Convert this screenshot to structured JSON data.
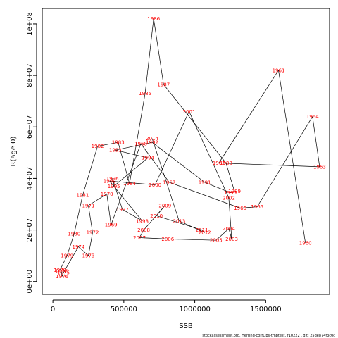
{
  "chart_data": {
    "type": "scatter",
    "xlabel": "SSB",
    "ylabel": "R(age 0)",
    "xlim": [
      -75000,
      1950000
    ],
    "ylim": [
      -5000000,
      106000000
    ],
    "x_ticks": [
      0,
      500000,
      1000000,
      1500000
    ],
    "x_tick_labels": [
      "0",
      "500000",
      "1000000",
      "1500000"
    ],
    "y_ticks": [
      0,
      20000000,
      40000000,
      60000000,
      80000000,
      100000000
    ],
    "y_tick_labels": [
      "0e+00",
      "2e+07",
      "4e+07",
      "6e+07",
      "8e+07",
      "1e+08"
    ],
    "points": [
      {
        "label": "1960",
        "x": 1780000,
        "y": 15000000
      },
      {
        "label": "1961",
        "x": 1590000,
        "y": 82000000
      },
      {
        "label": "1962",
        "x": 1170000,
        "y": 46000000
      },
      {
        "label": "1963",
        "x": 1880000,
        "y": 44500000
      },
      {
        "label": "1964",
        "x": 1830000,
        "y": 64000000
      },
      {
        "label": "1965",
        "x": 1440000,
        "y": 29000000
      },
      {
        "label": "1966",
        "x": 1320000,
        "y": 28500000
      },
      {
        "label": "1967",
        "x": 820000,
        "y": 38500000
      },
      {
        "label": "1968",
        "x": 620000,
        "y": 53500000
      },
      {
        "label": "1969",
        "x": 410000,
        "y": 22000000
      },
      {
        "label": "1970",
        "x": 380000,
        "y": 34000000
      },
      {
        "label": "1971",
        "x": 250000,
        "y": 29500000
      },
      {
        "label": "1972",
        "x": 280000,
        "y": 19000000
      },
      {
        "label": "1973",
        "x": 250000,
        "y": 10000000
      },
      {
        "label": "1974",
        "x": 180000,
        "y": 13500000
      },
      {
        "label": "1975",
        "x": 75000,
        "y": 3500000
      },
      {
        "label": "1976",
        "x": 65000,
        "y": 2000000
      },
      {
        "label": "1977",
        "x": 60000,
        "y": 4000000
      },
      {
        "label": "1978",
        "x": 50000,
        "y": 4500000
      },
      {
        "label": "1979",
        "x": 100000,
        "y": 10000000
      },
      {
        "label": "1980",
        "x": 150000,
        "y": 18500000
      },
      {
        "label": "1981",
        "x": 210000,
        "y": 33500000
      },
      {
        "label": "1982",
        "x": 315000,
        "y": 52500000
      },
      {
        "label": "1983",
        "x": 460000,
        "y": 54000000
      },
      {
        "label": "1984",
        "x": 540000,
        "y": 38000000
      },
      {
        "label": "1985",
        "x": 650000,
        "y": 73000000
      },
      {
        "label": "1986",
        "x": 710000,
        "y": 102000000
      },
      {
        "label": "1987",
        "x": 780000,
        "y": 76500000
      },
      {
        "label": "1988",
        "x": 1220000,
        "y": 46000000
      },
      {
        "label": "1989",
        "x": 1280000,
        "y": 35000000
      },
      {
        "label": "1990",
        "x": 1250000,
        "y": 34500000
      },
      {
        "label": "1991",
        "x": 1070000,
        "y": 38500000
      },
      {
        "label": "1992",
        "x": 700000,
        "y": 54000000
      },
      {
        "label": "1993",
        "x": 440000,
        "y": 51000000
      },
      {
        "label": "1994",
        "x": 670000,
        "y": 48000000
      },
      {
        "label": "1995",
        "x": 430000,
        "y": 37000000
      },
      {
        "label": "1996",
        "x": 420000,
        "y": 40000000
      },
      {
        "label": "1997",
        "x": 490000,
        "y": 28000000
      },
      {
        "label": "1998",
        "x": 630000,
        "y": 23500000
      },
      {
        "label": "1999",
        "x": 400000,
        "y": 39000000
      },
      {
        "label": "2000",
        "x": 720000,
        "y": 37500000
      },
      {
        "label": "2001",
        "x": 960000,
        "y": 66000000
      },
      {
        "label": "2002",
        "x": 1240000,
        "y": 32500000
      },
      {
        "label": "2003",
        "x": 1260000,
        "y": 16500000
      },
      {
        "label": "2004",
        "x": 1240000,
        "y": 20500000
      },
      {
        "label": "2005",
        "x": 1150000,
        "y": 16000000
      },
      {
        "label": "2006",
        "x": 810000,
        "y": 16500000
      },
      {
        "label": "2007",
        "x": 610000,
        "y": 17000000
      },
      {
        "label": "2008",
        "x": 640000,
        "y": 20000000
      },
      {
        "label": "2009",
        "x": 790000,
        "y": 29500000
      },
      {
        "label": "2010",
        "x": 730000,
        "y": 25500000
      },
      {
        "label": "2011",
        "x": 1050000,
        "y": 20000000
      },
      {
        "label": "2012",
        "x": 1070000,
        "y": 19000000
      },
      {
        "label": "2013",
        "x": 890000,
        "y": 23500000
      },
      {
        "label": "2014",
        "x": 700000,
        "y": 55500000
      }
    ]
  },
  "footer": "stockassessment.org, Herring-corrObs-tmbtest, r10222 , git: 25de874f3c0c"
}
